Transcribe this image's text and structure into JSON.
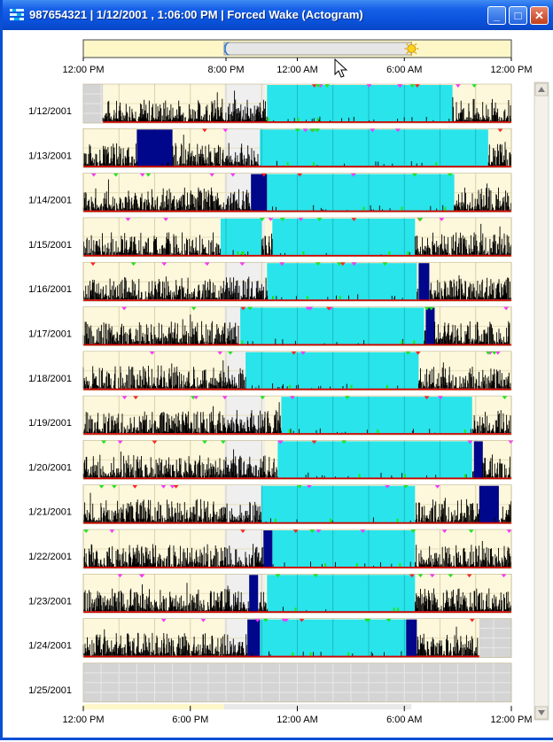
{
  "window": {
    "title": "987654321 | 1/12/2001 , 1:06:00 PM | Forced Wake (Actogram)",
    "minimize": "_",
    "maximize": "□",
    "close": "✕"
  },
  "timeline": {
    "ticks": [
      "12:00 PM",
      "8:00 PM",
      "12:00 AM",
      "6:00 AM",
      "12:00 PM"
    ],
    "tick_hours": [
      0,
      8,
      12,
      18,
      24
    ],
    "window_start_hour": 7.9,
    "window_end_hour": 18.4
  },
  "axis": {
    "bottom_ticks": [
      "12:00 PM",
      "6:00 PM",
      "12:00 AM",
      "6:00 AM",
      "12:00 PM"
    ],
    "bottom_tick_hours": [
      0,
      6,
      12,
      18,
      24
    ],
    "hours_span": 24
  },
  "chart_data": {
    "type": "actogram",
    "title": "Forced Wake (Actogram)",
    "x_unit": "hours from 12:00 PM",
    "xlim": [
      0,
      24
    ],
    "colors": {
      "rest": "#29e4ea",
      "sleep": "#00078a",
      "activity": "#000000",
      "baseline": "#d40000",
      "marker_green": "#1ee61e",
      "marker_magenta": "#ff33ff",
      "marker_red": "#ff2222"
    },
    "days": [
      {
        "date": "1/12/2001",
        "rest": [
          [
            10.3,
            20.7
          ]
        ],
        "sleep": [],
        "nodata": [
          [
            0,
            1.1
          ]
        ],
        "start": 1.1,
        "end": 24
      },
      {
        "date": "1/13/2001",
        "rest": [
          [
            9.9,
            22.7
          ]
        ],
        "sleep": [
          [
            3.0,
            5.0
          ]
        ],
        "nodata": [],
        "start": 0,
        "end": 24
      },
      {
        "date": "1/14/2001",
        "rest": [
          [
            10.3,
            20.8
          ]
        ],
        "sleep": [
          [
            9.4,
            10.3
          ]
        ],
        "nodata": [],
        "start": 0,
        "end": 24
      },
      {
        "date": "1/15/2001",
        "rest": [
          [
            7.7,
            10.0
          ],
          [
            10.6,
            18.6
          ]
        ],
        "sleep": [],
        "nodata": [],
        "start": 0,
        "end": 24
      },
      {
        "date": "1/16/2001",
        "rest": [
          [
            10.3,
            18.7
          ]
        ],
        "sleep": [
          [
            18.8,
            19.4
          ]
        ],
        "nodata": [],
        "start": 0,
        "end": 24
      },
      {
        "date": "1/17/2001",
        "rest": [
          [
            8.8,
            19.1
          ]
        ],
        "sleep": [
          [
            19.2,
            19.7
          ]
        ],
        "nodata": [],
        "start": 0,
        "end": 24
      },
      {
        "date": "1/18/2001",
        "rest": [
          [
            9.1,
            18.8
          ]
        ],
        "sleep": [],
        "nodata": [],
        "start": 0,
        "end": 24
      },
      {
        "date": "1/19/2001",
        "rest": [
          [
            11.1,
            21.8
          ]
        ],
        "sleep": [],
        "nodata": [],
        "start": 0,
        "end": 24
      },
      {
        "date": "1/20/2001",
        "rest": [
          [
            10.9,
            21.8
          ]
        ],
        "sleep": [
          [
            21.9,
            22.4
          ]
        ],
        "nodata": [],
        "start": 0,
        "end": 24
      },
      {
        "date": "1/21/2001",
        "rest": [
          [
            10.0,
            18.6
          ]
        ],
        "sleep": [
          [
            22.2,
            23.3
          ]
        ],
        "nodata": [],
        "start": 0,
        "end": 24
      },
      {
        "date": "1/22/2001",
        "rest": [
          [
            10.6,
            18.6
          ]
        ],
        "sleep": [
          [
            10.1,
            10.6
          ]
        ],
        "nodata": [],
        "start": 0,
        "end": 24
      },
      {
        "date": "1/23/2001",
        "rest": [
          [
            10.3,
            18.6
          ]
        ],
        "sleep": [
          [
            9.3,
            9.8
          ]
        ],
        "nodata": [],
        "start": 0,
        "end": 24
      },
      {
        "date": "1/24/2001",
        "rest": [
          [
            9.9,
            18.1
          ]
        ],
        "sleep": [
          [
            9.2,
            9.9
          ],
          [
            18.1,
            18.7
          ]
        ],
        "nodata": [
          [
            22.2,
            24
          ]
        ],
        "start": 0,
        "end": 22.2
      },
      {
        "date": "1/25/2001",
        "rest": [],
        "sleep": [],
        "nodata": [
          [
            0,
            24
          ]
        ],
        "start": 24,
        "end": 24
      }
    ]
  }
}
